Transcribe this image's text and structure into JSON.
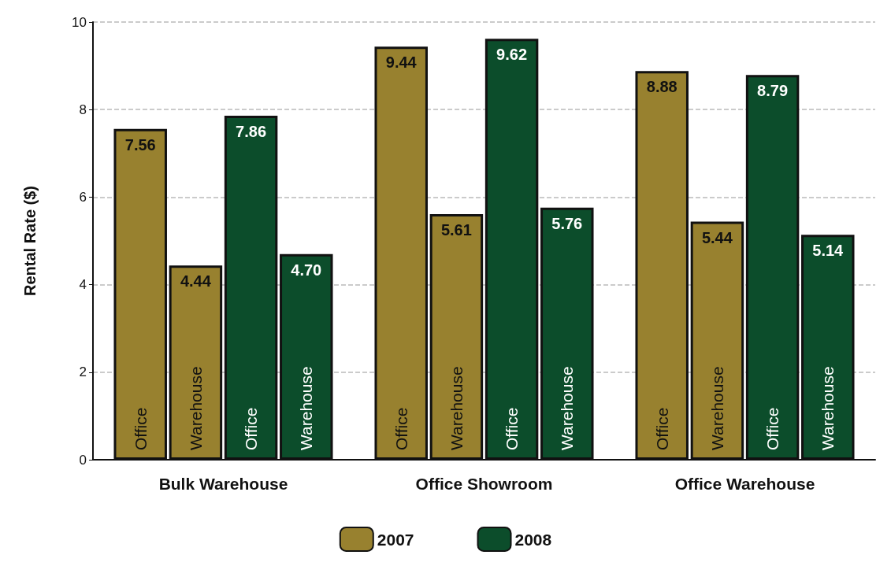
{
  "chart_data": {
    "type": "bar",
    "ylabel": "Rental Rate ($)",
    "categories": [
      "Bulk Warehouse",
      "Office Showroom",
      "Office Warehouse"
    ],
    "series": [
      {
        "name": "2007",
        "color": "#98812f",
        "values": [
          7.56,
          9.44,
          8.88
        ],
        "value_labels": [
          "7.56",
          "9.44",
          "8.88"
        ]
      },
      {
        "color": "#98812f",
        "values": [
          4.44,
          5.61,
          5.44
        ],
        "value_labels": [
          "4.44",
          "5.61",
          "5.44"
        ]
      },
      {
        "name": "2008",
        "color": "#0c4d2b",
        "values": [
          7.86,
          9.62,
          8.79
        ],
        "value_labels": [
          "7.86",
          "9.62",
          "8.79"
        ]
      },
      {
        "color": "#0c4d2b",
        "values": [
          4.7,
          5.76,
          5.14
        ],
        "value_labels": [
          "4.70",
          "5.76",
          "5.14"
        ]
      }
    ],
    "annotations": [
      "Office",
      "Warehouse"
    ],
    "ylim": [
      0,
      10
    ],
    "yticks": [
      0,
      2,
      4,
      6,
      8,
      10
    ],
    "grid": "y",
    "legend": "bottom"
  }
}
